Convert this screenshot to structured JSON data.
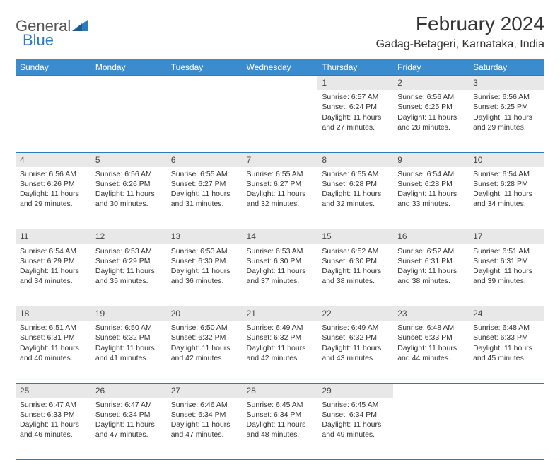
{
  "logo": {
    "text1": "General",
    "text2": "Blue"
  },
  "title": "February 2024",
  "location": "Gadag-Betageri, Karnataka, India",
  "colors": {
    "header_bg": "#3b8bcf",
    "header_text": "#ffffff",
    "daynum_bg": "#e8e8e8",
    "rule": "#2a7abf",
    "logo_blue": "#2a7abf",
    "text": "#333333",
    "background": "#ffffff"
  },
  "typography": {
    "title_fontsize": 28,
    "location_fontsize": 16,
    "header_fontsize": 12,
    "cell_fontsize": 10.5,
    "logo_fontsize": 22
  },
  "day_headers": [
    "Sunday",
    "Monday",
    "Tuesday",
    "Wednesday",
    "Thursday",
    "Friday",
    "Saturday"
  ],
  "weeks": [
    [
      null,
      null,
      null,
      null,
      {
        "n": "1",
        "sr": "6:57 AM",
        "ss": "6:24 PM",
        "dl": "11 hours and 27 minutes."
      },
      {
        "n": "2",
        "sr": "6:56 AM",
        "ss": "6:25 PM",
        "dl": "11 hours and 28 minutes."
      },
      {
        "n": "3",
        "sr": "6:56 AM",
        "ss": "6:25 PM",
        "dl": "11 hours and 29 minutes."
      }
    ],
    [
      {
        "n": "4",
        "sr": "6:56 AM",
        "ss": "6:26 PM",
        "dl": "11 hours and 29 minutes."
      },
      {
        "n": "5",
        "sr": "6:56 AM",
        "ss": "6:26 PM",
        "dl": "11 hours and 30 minutes."
      },
      {
        "n": "6",
        "sr": "6:55 AM",
        "ss": "6:27 PM",
        "dl": "11 hours and 31 minutes."
      },
      {
        "n": "7",
        "sr": "6:55 AM",
        "ss": "6:27 PM",
        "dl": "11 hours and 32 minutes."
      },
      {
        "n": "8",
        "sr": "6:55 AM",
        "ss": "6:28 PM",
        "dl": "11 hours and 32 minutes."
      },
      {
        "n": "9",
        "sr": "6:54 AM",
        "ss": "6:28 PM",
        "dl": "11 hours and 33 minutes."
      },
      {
        "n": "10",
        "sr": "6:54 AM",
        "ss": "6:28 PM",
        "dl": "11 hours and 34 minutes."
      }
    ],
    [
      {
        "n": "11",
        "sr": "6:54 AM",
        "ss": "6:29 PM",
        "dl": "11 hours and 34 minutes."
      },
      {
        "n": "12",
        "sr": "6:53 AM",
        "ss": "6:29 PM",
        "dl": "11 hours and 35 minutes."
      },
      {
        "n": "13",
        "sr": "6:53 AM",
        "ss": "6:30 PM",
        "dl": "11 hours and 36 minutes."
      },
      {
        "n": "14",
        "sr": "6:53 AM",
        "ss": "6:30 PM",
        "dl": "11 hours and 37 minutes."
      },
      {
        "n": "15",
        "sr": "6:52 AM",
        "ss": "6:30 PM",
        "dl": "11 hours and 38 minutes."
      },
      {
        "n": "16",
        "sr": "6:52 AM",
        "ss": "6:31 PM",
        "dl": "11 hours and 38 minutes."
      },
      {
        "n": "17",
        "sr": "6:51 AM",
        "ss": "6:31 PM",
        "dl": "11 hours and 39 minutes."
      }
    ],
    [
      {
        "n": "18",
        "sr": "6:51 AM",
        "ss": "6:31 PM",
        "dl": "11 hours and 40 minutes."
      },
      {
        "n": "19",
        "sr": "6:50 AM",
        "ss": "6:32 PM",
        "dl": "11 hours and 41 minutes."
      },
      {
        "n": "20",
        "sr": "6:50 AM",
        "ss": "6:32 PM",
        "dl": "11 hours and 42 minutes."
      },
      {
        "n": "21",
        "sr": "6:49 AM",
        "ss": "6:32 PM",
        "dl": "11 hours and 42 minutes."
      },
      {
        "n": "22",
        "sr": "6:49 AM",
        "ss": "6:32 PM",
        "dl": "11 hours and 43 minutes."
      },
      {
        "n": "23",
        "sr": "6:48 AM",
        "ss": "6:33 PM",
        "dl": "11 hours and 44 minutes."
      },
      {
        "n": "24",
        "sr": "6:48 AM",
        "ss": "6:33 PM",
        "dl": "11 hours and 45 minutes."
      }
    ],
    [
      {
        "n": "25",
        "sr": "6:47 AM",
        "ss": "6:33 PM",
        "dl": "11 hours and 46 minutes."
      },
      {
        "n": "26",
        "sr": "6:47 AM",
        "ss": "6:34 PM",
        "dl": "11 hours and 47 minutes."
      },
      {
        "n": "27",
        "sr": "6:46 AM",
        "ss": "6:34 PM",
        "dl": "11 hours and 47 minutes."
      },
      {
        "n": "28",
        "sr": "6:45 AM",
        "ss": "6:34 PM",
        "dl": "11 hours and 48 minutes."
      },
      {
        "n": "29",
        "sr": "6:45 AM",
        "ss": "6:34 PM",
        "dl": "11 hours and 49 minutes."
      },
      null,
      null
    ]
  ],
  "labels": {
    "sunrise": "Sunrise:",
    "sunset": "Sunset:",
    "daylight": "Daylight:"
  }
}
